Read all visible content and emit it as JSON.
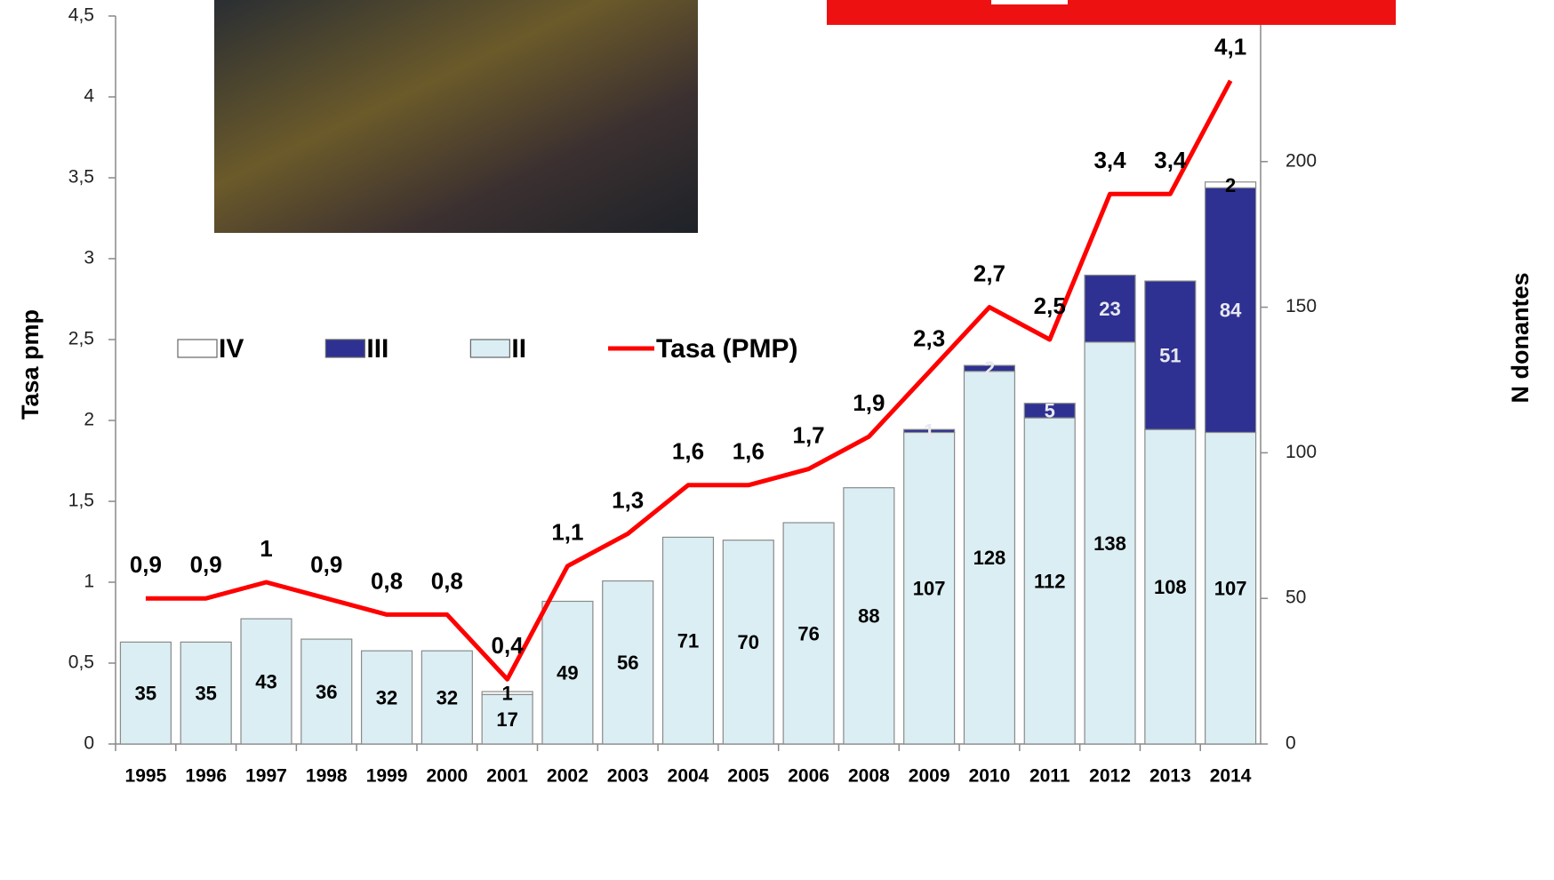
{
  "chart_data": {
    "type": "bar-line",
    "y_label": "Tasa pmp",
    "y2_label": "N donantes",
    "categories": [
      "1995",
      "1996",
      "1997",
      "1998",
      "1999",
      "2000",
      "2001",
      "2002",
      "2003",
      "2004",
      "2005",
      "2006",
      "2008",
      "2009",
      "2010",
      "2011",
      "2012",
      "2013",
      "2014"
    ],
    "series": [
      {
        "name": "IV",
        "type": "bar",
        "axis": "y2",
        "color": "#ffffff",
        "label_color": "#000000",
        "values": [
          null,
          null,
          null,
          null,
          null,
          null,
          1,
          null,
          null,
          null,
          null,
          null,
          null,
          null,
          null,
          null,
          null,
          null,
          2
        ]
      },
      {
        "name": "III",
        "type": "bar",
        "axis": "y2",
        "color": "#2e3192",
        "label_color": "#e8e8f0",
        "values": [
          null,
          null,
          null,
          null,
          null,
          null,
          null,
          null,
          null,
          null,
          null,
          null,
          null,
          1,
          2,
          5,
          23,
          51,
          84
        ]
      },
      {
        "name": "II",
        "type": "bar",
        "axis": "y2",
        "color": "#daeef3",
        "label_color": "#000000",
        "values": [
          35,
          35,
          43,
          36,
          32,
          32,
          17,
          49,
          56,
          71,
          70,
          76,
          88,
          107,
          128,
          112,
          138,
          108,
          107
        ]
      },
      {
        "name": "Tasa (PMP)",
        "type": "line",
        "axis": "y",
        "color": "#ff0000",
        "values": [
          0.9,
          0.9,
          1,
          0.9,
          0.8,
          0.8,
          0.4,
          1.1,
          1.3,
          1.6,
          1.6,
          1.7,
          1.9,
          2.3,
          2.7,
          2.5,
          3.4,
          3.4,
          4.1
        ],
        "value_labels": [
          "0,9",
          "0,9",
          "1",
          "0,9",
          "0,8",
          "0,8",
          "0,4",
          "1,1",
          "1,3",
          "1,6",
          "1,6",
          "1,7",
          "1,9",
          "2,3",
          "2,7",
          "2,5",
          "3,4",
          "3,4",
          "4,1"
        ]
      }
    ],
    "ylim": [
      0,
      4.5
    ],
    "yticks": [
      0,
      {
        "value": 0.5,
        "label": "0,5"
      },
      1,
      {
        "value": 1.5,
        "label": "1,5"
      },
      2,
      {
        "value": 2.5,
        "label": "2,5"
      },
      3,
      {
        "value": 3.5,
        "label": "3,5"
      },
      4,
      {
        "value": 4.5,
        "label": "4,5"
      }
    ],
    "y2lim": [
      0,
      250
    ],
    "y2ticks": [
      0,
      50,
      100,
      150,
      200,
      250
    ],
    "legend": "top-left"
  }
}
